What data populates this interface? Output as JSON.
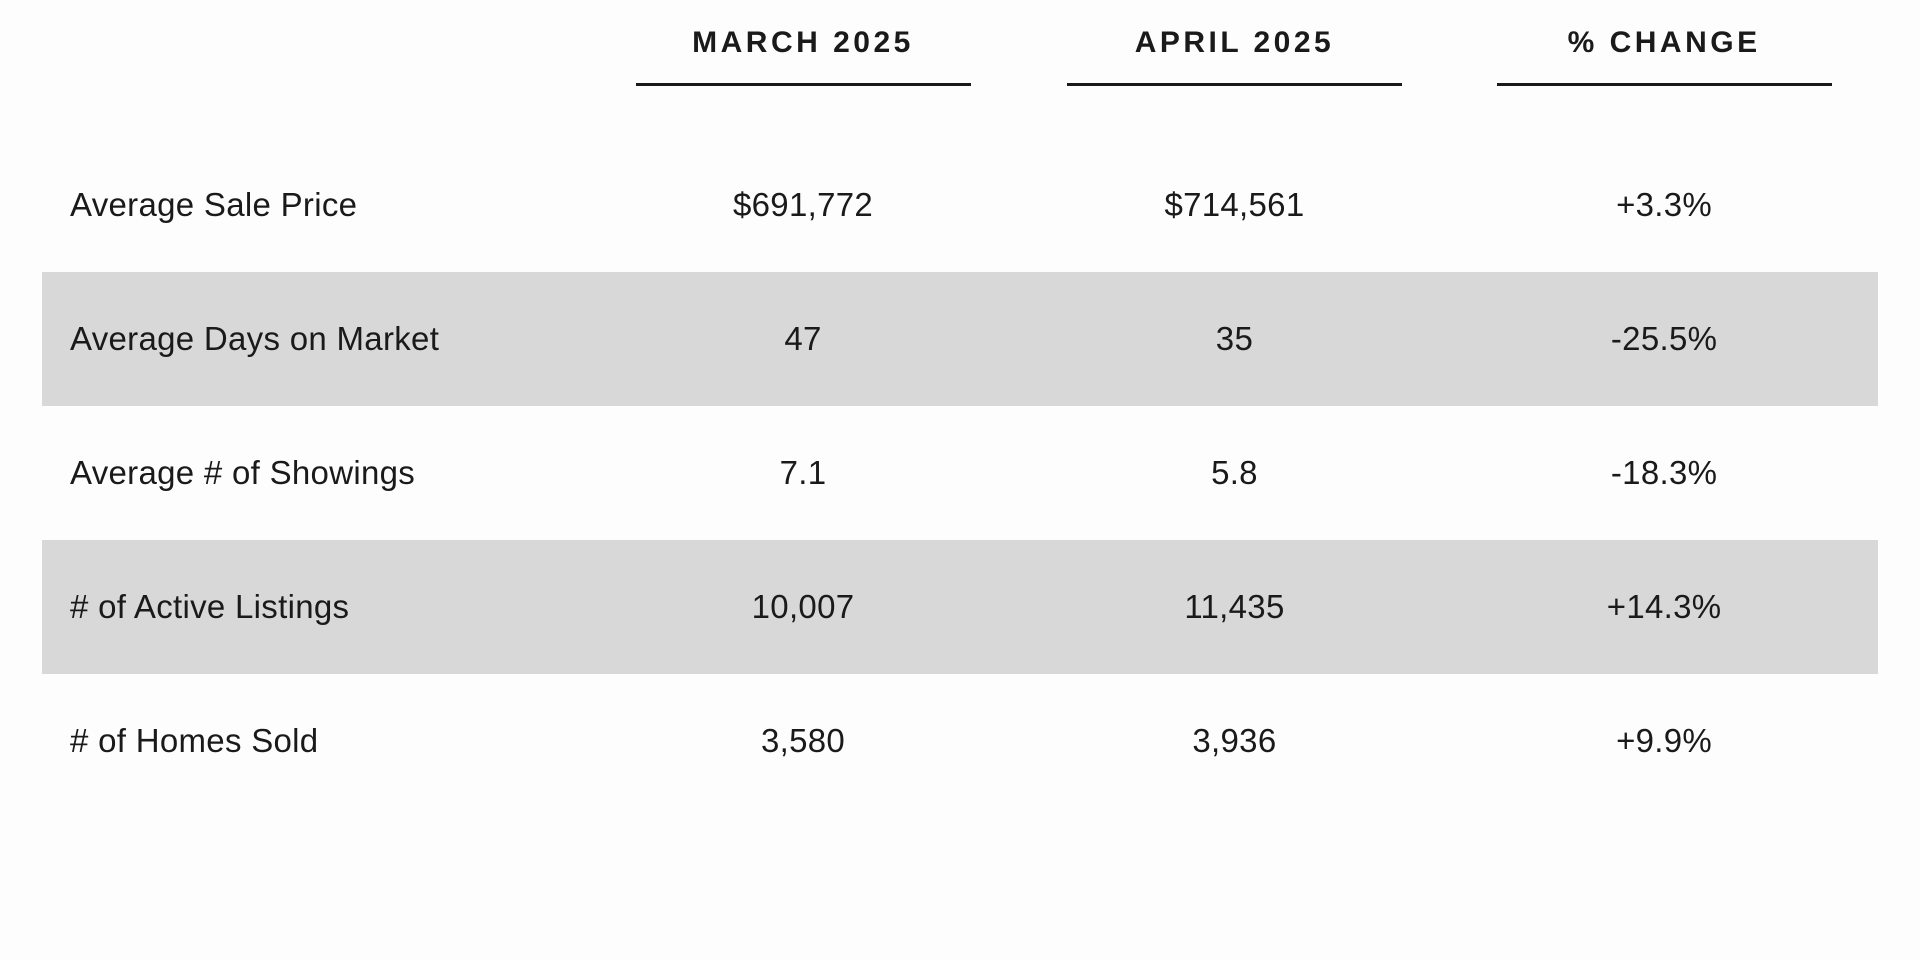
{
  "table": {
    "columns": [
      {
        "label": "MARCH 2025"
      },
      {
        "label": "APRIL 2025"
      },
      {
        "label": "% CHANGE"
      }
    ],
    "rows": [
      {
        "label": "Average Sale Price",
        "march": "$691,772",
        "april": "$714,561",
        "change": "+3.3%",
        "shaded": false
      },
      {
        "label": "Average Days on Market",
        "march": "47",
        "april": "35",
        "change": "-25.5%",
        "shaded": true
      },
      {
        "label": "Average # of Showings",
        "march": "7.1",
        "april": "5.8",
        "change": "-18.3%",
        "shaded": false
      },
      {
        "label": "# of Active Listings",
        "march": "10,007",
        "april": "11,435",
        "change": "+14.3%",
        "shaded": true
      },
      {
        "label": "# of Homes Sold",
        "march": "3,580",
        "april": "3,936",
        "change": "+9.9%",
        "shaded": false
      }
    ]
  },
  "chart_data": {
    "type": "table",
    "title": "",
    "columns": [
      "",
      "MARCH 2025",
      "APRIL 2025",
      "% CHANGE"
    ],
    "categories": [
      "Average Sale Price",
      "Average Days on Market",
      "Average # of Showings",
      "# of Active Listings",
      "# of Homes Sold"
    ],
    "series": [
      {
        "name": "MARCH 2025",
        "values": [
          691772,
          47,
          7.1,
          10007,
          3580
        ]
      },
      {
        "name": "APRIL 2025",
        "values": [
          714561,
          35,
          5.8,
          11435,
          3936
        ]
      },
      {
        "name": "% CHANGE",
        "values": [
          3.3,
          -25.5,
          -18.3,
          14.3,
          9.9
        ]
      }
    ],
    "value_labels": [
      [
        "$691,772",
        "$714,561",
        "+3.3%"
      ],
      [
        "47",
        "35",
        "-25.5%"
      ],
      [
        "7.1",
        "5.8",
        "-18.3%"
      ],
      [
        "10,007",
        "11,435",
        "+14.3%"
      ],
      [
        "3,580",
        "3,936",
        "+9.9%"
      ]
    ],
    "layout_hints": {
      "shaded_row_indexes": [
        1,
        3
      ],
      "grid": "off",
      "header_underlines": true
    }
  },
  "colors": {
    "background": "#fdfdfd",
    "row_shade": "#d8d8d8",
    "text": "#1a1a1a",
    "underline": "#1a1a1a"
  }
}
